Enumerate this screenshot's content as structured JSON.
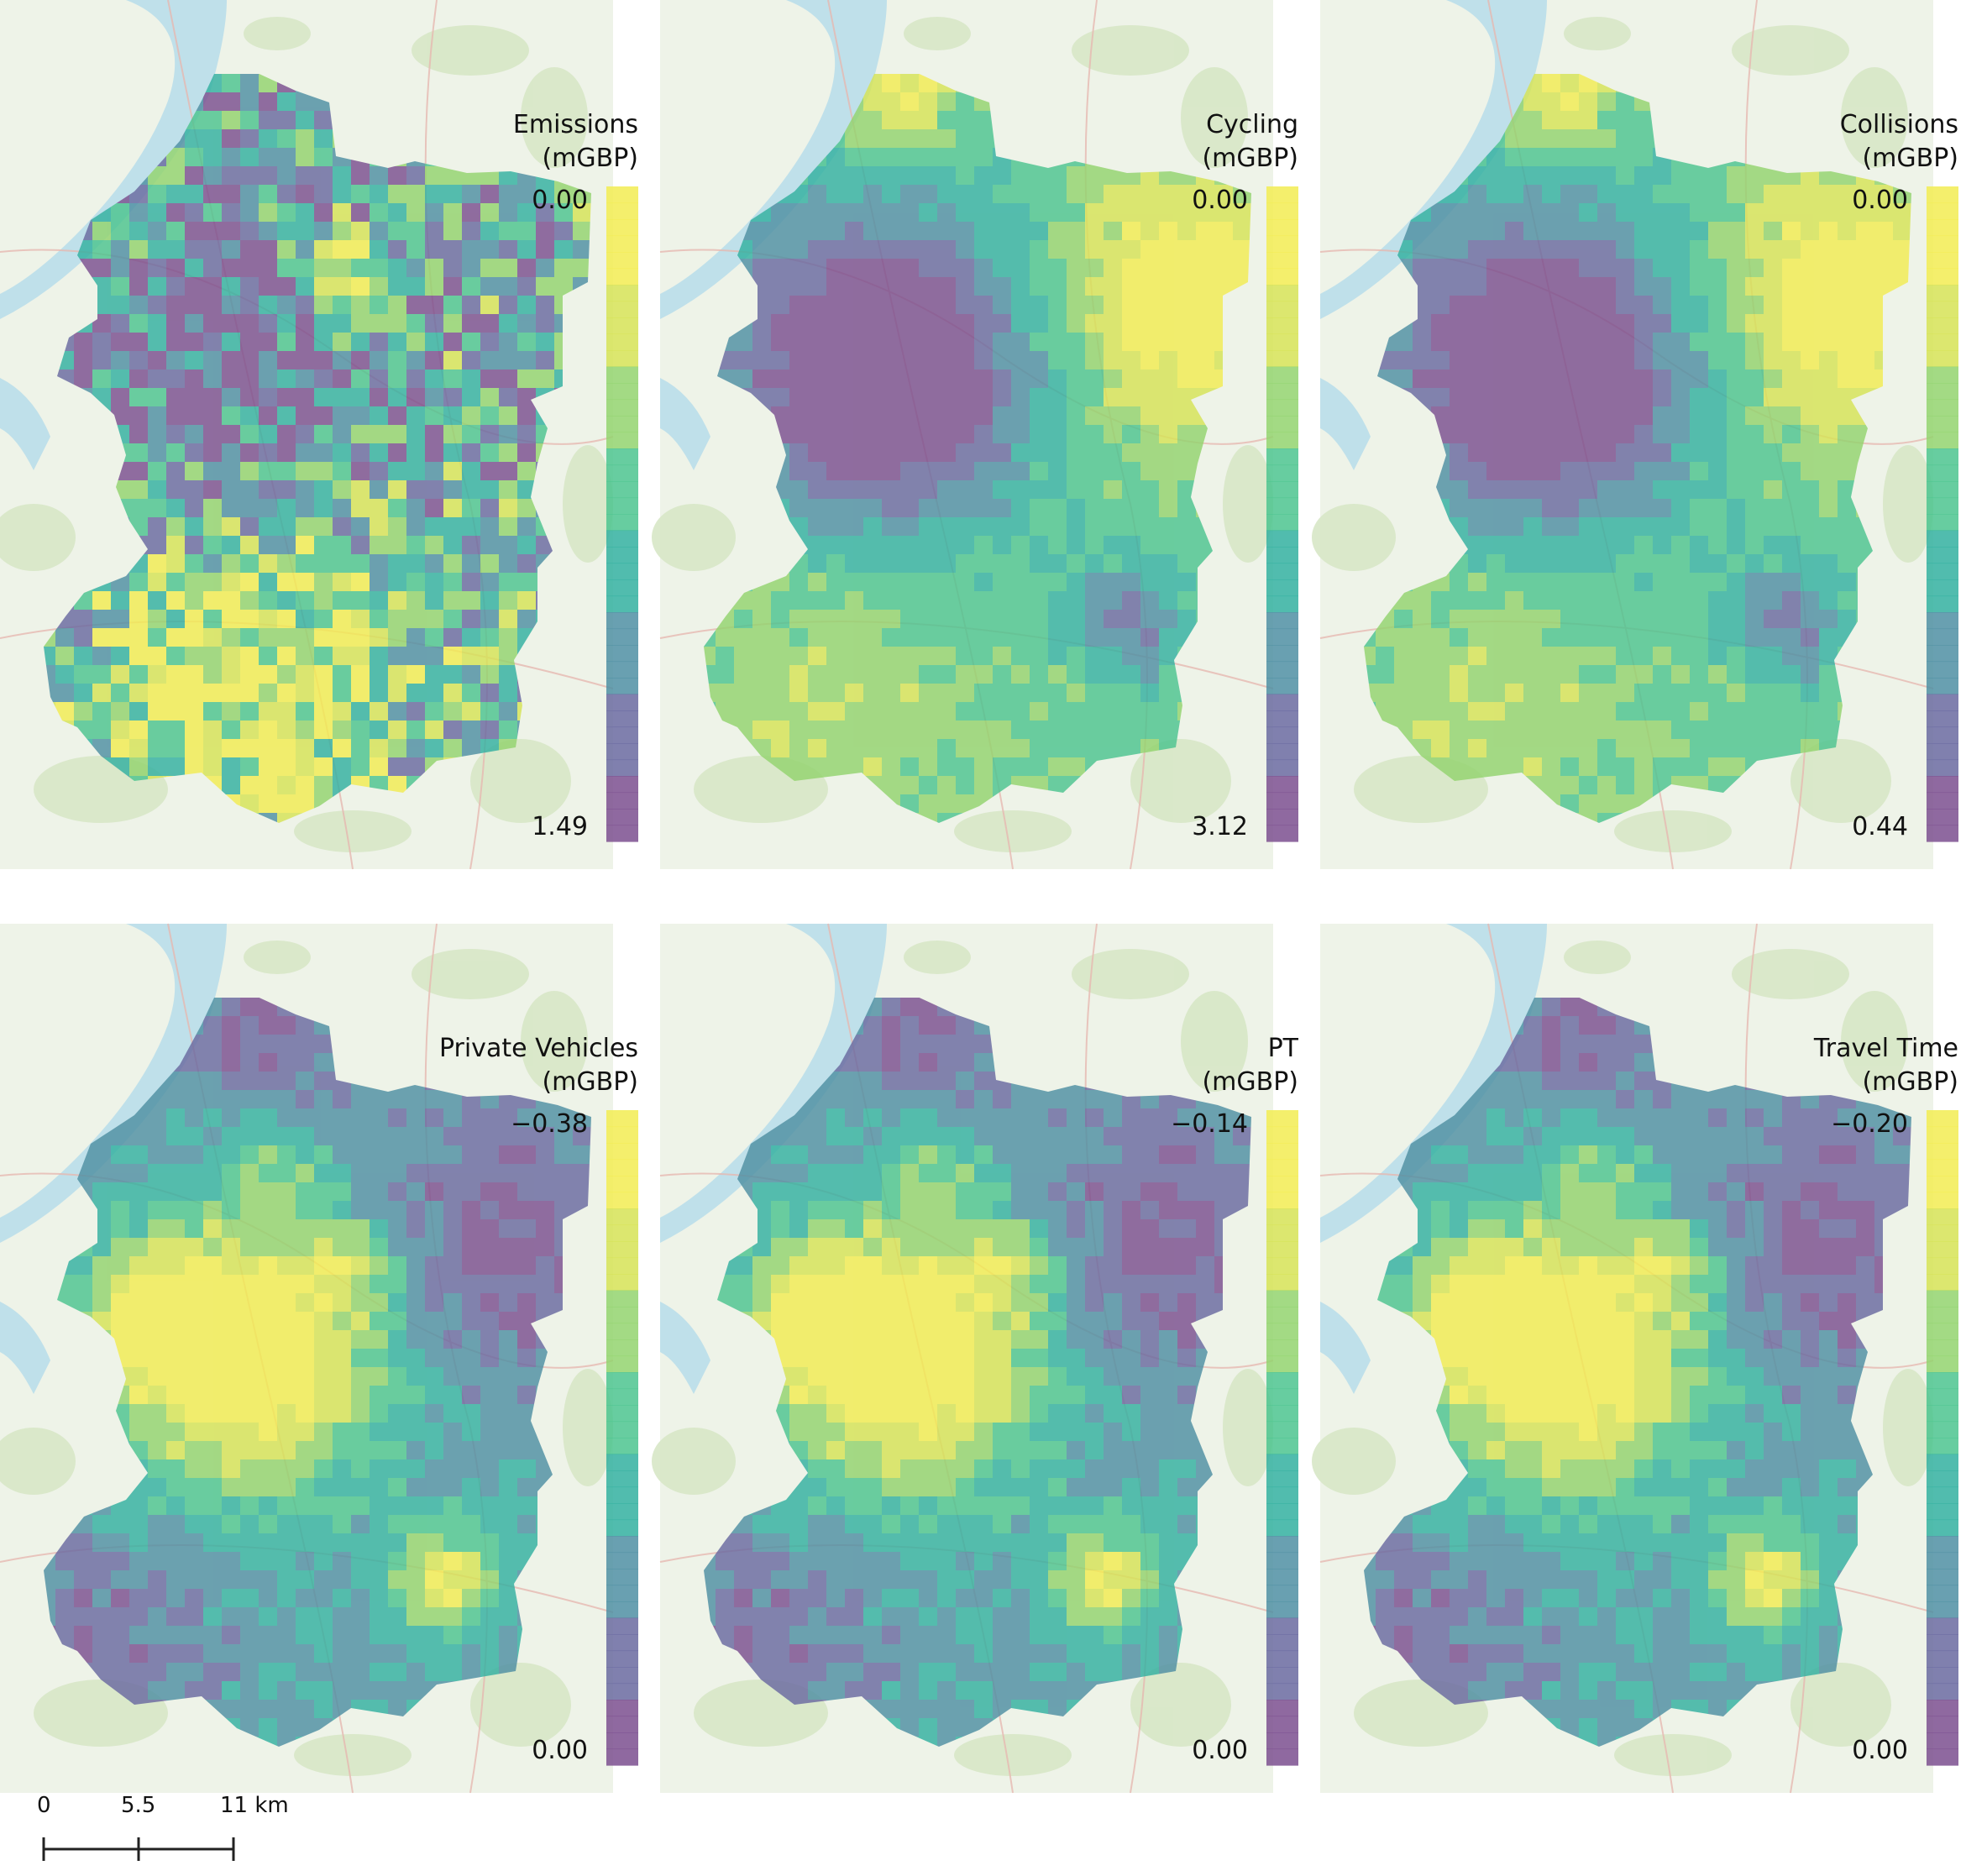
{
  "panels": [
    {
      "id": "emissions",
      "title": "Emissions",
      "unit": "(mGBP)",
      "legend_top": "0.00",
      "legend_bottom": "1.49",
      "pattern": "emissions"
    },
    {
      "id": "cycling",
      "title": "Cycling",
      "unit": "(mGBP)",
      "legend_top": "0.00",
      "legend_bottom": "3.12",
      "pattern": "cycling"
    },
    {
      "id": "collisions",
      "title": "Collisions",
      "unit": "(mGBP)",
      "legend_top": "0.00",
      "legend_bottom": "0.44",
      "pattern": "cycling"
    },
    {
      "id": "private-vehicles",
      "title": "Private Vehicles",
      "unit": "(mGBP)",
      "legend_top": "−0.38",
      "legend_bottom": "0.00",
      "pattern": "urban"
    },
    {
      "id": "pt",
      "title": "PT",
      "unit": "(mGBP)",
      "legend_top": "−0.14",
      "legend_bottom": "0.00",
      "pattern": "urban"
    },
    {
      "id": "travel-time",
      "title": "Travel Time",
      "unit": "(mGBP)",
      "legend_top": "−0.20",
      "legend_bottom": "0.00",
      "pattern": "urban"
    }
  ],
  "scale_bar": {
    "label_0": "0",
    "label_mid": "5.5",
    "label_end": "11 km"
  },
  "north_arrow": "north-arrow-icon",
  "colormap": [
    "#7b4f8f",
    "#6a6aa0",
    "#4f8fa3",
    "#33b0a0",
    "#4cc48f",
    "#93d36e",
    "#d6e356",
    "#f2ec52"
  ],
  "colors": {
    "water": "#bfe0ea",
    "basemap": "#eef3e8",
    "green": "#d7e7c6",
    "road": "#e6b8b0"
  }
}
